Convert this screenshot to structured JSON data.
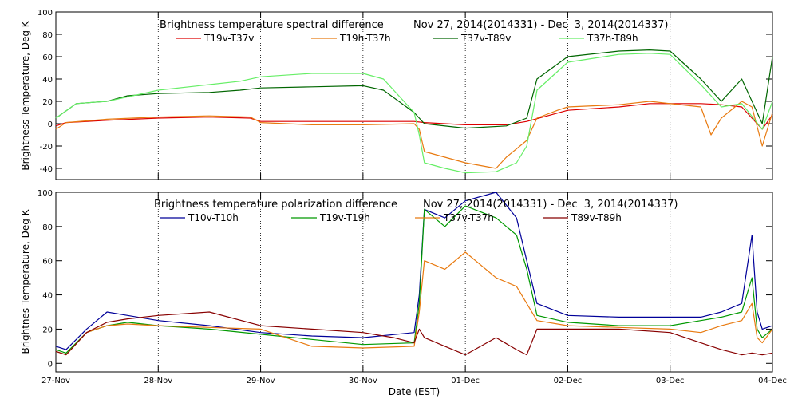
{
  "x_axis": {
    "label": "Date (EST)",
    "range": [
      0,
      7
    ],
    "ticks": [
      {
        "value": 0,
        "label": "27-Nov"
      },
      {
        "value": 1,
        "label": "28-Nov"
      },
      {
        "value": 2,
        "label": "29-Nov"
      },
      {
        "value": 3,
        "label": "30-Nov"
      },
      {
        "value": 4,
        "label": "01-Dec"
      },
      {
        "value": 5,
        "label": "02-Dec"
      },
      {
        "value": 6,
        "label": "03-Dec"
      },
      {
        "value": 7,
        "label": "04-Dec"
      }
    ]
  },
  "chart_data": [
    {
      "type": "line",
      "title_left": "Brightness temperature spectral difference",
      "title_right": "Nov 27, 2014(2014331) - Dec  3, 2014(2014337)",
      "ylabel": "Brightness Temperature, Deg K",
      "ylim": [
        -50,
        100
      ],
      "yticks": [
        -40,
        -20,
        0,
        20,
        40,
        60,
        80,
        100
      ],
      "x_unit": "days after 27-Nov (EST)",
      "series": [
        {
          "name": "T19v-T37v",
          "color": "#dd0000",
          "x": [
            0,
            0.1,
            0.5,
            1.0,
            1.5,
            1.9,
            2.0,
            2.5,
            3.0,
            3.5,
            3.6,
            4.0,
            4.4,
            4.6,
            4.8,
            5.0,
            5.5,
            5.8,
            6.0,
            6.3,
            6.5,
            6.7,
            6.8,
            6.9,
            7.0
          ],
          "y": [
            -2,
            1,
            3,
            5,
            6,
            5,
            2,
            2,
            2,
            2,
            1,
            -1,
            -1,
            2,
            7,
            12,
            15,
            18,
            18,
            18,
            17,
            15,
            5,
            -5,
            8
          ]
        },
        {
          "name": "T19h-T37h",
          "color": "#e87a10",
          "x": [
            0,
            0.1,
            0.5,
            1.0,
            1.5,
            1.9,
            2.0,
            2.5,
            3.0,
            3.5,
            3.55,
            3.6,
            3.8,
            4.0,
            4.3,
            4.4,
            4.6,
            4.7,
            4.9,
            5.0,
            5.5,
            5.8,
            6.0,
            6.3,
            6.4,
            6.5,
            6.7,
            6.8,
            6.9,
            7.0
          ],
          "y": [
            -5,
            1,
            4,
            6,
            7,
            6,
            1,
            -1,
            -1,
            0,
            -5,
            -25,
            -30,
            -35,
            -40,
            -30,
            -15,
            5,
            12,
            15,
            17,
            20,
            18,
            15,
            -10,
            5,
            20,
            15,
            -20,
            10
          ]
        },
        {
          "name": "T37v-T89v",
          "color": "#006600",
          "x": [
            0,
            0.2,
            0.5,
            0.7,
            1.0,
            1.5,
            1.8,
            2.0,
            2.5,
            3.0,
            3.2,
            3.5,
            3.6,
            4.0,
            4.4,
            4.6,
            4.7,
            5.0,
            5.5,
            5.8,
            6.0,
            6.3,
            6.5,
            6.7,
            6.9,
            7.0
          ],
          "y": [
            5,
            18,
            20,
            25,
            27,
            28,
            30,
            32,
            33,
            34,
            30,
            10,
            0,
            -4,
            -2,
            5,
            40,
            60,
            65,
            66,
            65,
            40,
            20,
            40,
            0,
            60
          ]
        },
        {
          "name": "T37h-T89h",
          "color": "#66ee66",
          "x": [
            0,
            0.2,
            0.5,
            0.7,
            1.0,
            1.5,
            1.8,
            2.0,
            2.5,
            3.0,
            3.2,
            3.5,
            3.55,
            3.6,
            3.8,
            4.0,
            4.3,
            4.5,
            4.6,
            4.7,
            5.0,
            5.5,
            5.8,
            6.0,
            6.3,
            6.5,
            6.7,
            6.9,
            7.0
          ],
          "y": [
            5,
            18,
            20,
            24,
            30,
            35,
            38,
            42,
            45,
            45,
            40,
            10,
            -10,
            -35,
            -40,
            -44,
            -43,
            -35,
            -20,
            30,
            55,
            62,
            63,
            62,
            35,
            15,
            18,
            -5,
            20
          ]
        }
      ]
    },
    {
      "type": "line",
      "title_left": "Brightness temperature polarization difference",
      "title_right": "Nov 27, 2014(2014331) - Dec  3, 2014(2014337)",
      "ylabel": "Brightnes Temperature, Deg K",
      "ylim": [
        -5,
        100
      ],
      "yticks": [
        0,
        20,
        40,
        60,
        80,
        100
      ],
      "x_unit": "days after 27-Nov (EST)",
      "series": [
        {
          "name": "T10v-T10h",
          "color": "#000099",
          "x": [
            0,
            0.1,
            0.3,
            0.5,
            0.7,
            1.0,
            1.5,
            2.0,
            2.5,
            3.0,
            3.5,
            3.55,
            3.6,
            3.8,
            4.0,
            4.3,
            4.5,
            4.6,
            4.7,
            5.0,
            5.5,
            6.0,
            6.3,
            6.5,
            6.7,
            6.8,
            6.85,
            6.9,
            7.0
          ],
          "y": [
            10,
            8,
            20,
            30,
            28,
            25,
            22,
            18,
            16,
            15,
            18,
            40,
            90,
            85,
            95,
            100,
            85,
            60,
            35,
            28,
            27,
            27,
            27,
            30,
            35,
            75,
            30,
            20,
            22
          ]
        },
        {
          "name": "T19v-T19h",
          "color": "#009900",
          "x": [
            0,
            0.1,
            0.3,
            0.5,
            0.7,
            1.0,
            1.5,
            2.0,
            2.5,
            3.0,
            3.5,
            3.55,
            3.6,
            3.8,
            4.0,
            4.3,
            4.5,
            4.6,
            4.7,
            5.0,
            5.5,
            6.0,
            6.3,
            6.5,
            6.7,
            6.8,
            6.85,
            6.9,
            7.0
          ],
          "y": [
            8,
            6,
            18,
            22,
            24,
            22,
            20,
            17,
            14,
            11,
            12,
            35,
            90,
            80,
            92,
            85,
            75,
            55,
            28,
            24,
            22,
            22,
            25,
            27,
            30,
            50,
            20,
            15,
            20
          ]
        },
        {
          "name": "T37v-T37h",
          "color": "#e87a10",
          "x": [
            0,
            0.1,
            0.3,
            0.5,
            0.7,
            1.0,
            1.5,
            2.0,
            2.5,
            3.0,
            3.5,
            3.55,
            3.6,
            3.8,
            4.0,
            4.3,
            4.5,
            4.6,
            4.7,
            5.0,
            5.5,
            6.0,
            6.3,
            6.5,
            6.7,
            6.8,
            6.85,
            6.9,
            7.0
          ],
          "y": [
            7,
            5,
            18,
            22,
            23,
            22,
            21,
            20,
            10,
            9,
            10,
            30,
            60,
            55,
            65,
            50,
            45,
            35,
            25,
            22,
            21,
            20,
            18,
            22,
            25,
            35,
            15,
            12,
            20
          ]
        },
        {
          "name": "T89v-T89h",
          "color": "#880000",
          "x": [
            0,
            0.1,
            0.3,
            0.5,
            0.7,
            1.0,
            1.5,
            2.0,
            2.5,
            3.0,
            3.3,
            3.5,
            3.55,
            3.6,
            3.8,
            4.0,
            4.3,
            4.5,
            4.6,
            4.7,
            5.0,
            5.5,
            6.0,
            6.3,
            6.5,
            6.7,
            6.8,
            6.9,
            7.0
          ],
          "y": [
            7,
            5,
            18,
            24,
            26,
            28,
            30,
            22,
            20,
            18,
            15,
            12,
            20,
            15,
            10,
            5,
            15,
            8,
            5,
            20,
            20,
            20,
            18,
            12,
            8,
            5,
            6,
            5,
            6
          ]
        }
      ]
    }
  ]
}
